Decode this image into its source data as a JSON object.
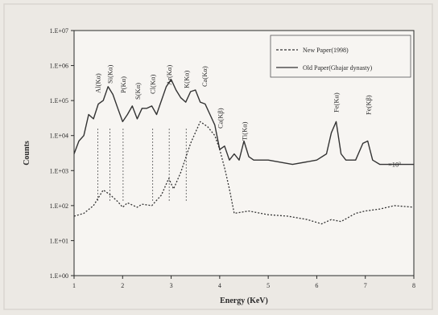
{
  "chart_data": {
    "type": "line",
    "xlabel": "Energy (KeV)",
    "ylabel": "Counts",
    "xlim": [
      1,
      8
    ],
    "ylog": true,
    "ylim": [
      1,
      10000000
    ],
    "x_ticks": [
      "1",
      "2",
      "3",
      "4",
      "5",
      "6",
      "7",
      "8"
    ],
    "y_ticks": [
      "1.E+00",
      "1.E+01",
      "1.E+02",
      "1.E+03",
      "1.E+04",
      "1.E+05",
      "1.E+06",
      "1.E+07"
    ],
    "legend": {
      "placement": "top-right",
      "entries": [
        "New Paper(1998)",
        "Old Paper(Ghajar dynasty)"
      ]
    },
    "multiplier_annotation": "×10³",
    "peaks": [
      {
        "label": "Al(Kα)",
        "x": 1.49
      },
      {
        "label": "Si(Kα)",
        "x": 1.74
      },
      {
        "label": "P(Kα)",
        "x": 2.01
      },
      {
        "label": "S(Kα)",
        "x": 2.31
      },
      {
        "label": "Cl(Kα)",
        "x": 2.62
      },
      {
        "label": "Ar(Kα)",
        "x": 2.96
      },
      {
        "label": "K(Kα)",
        "x": 3.31
      },
      {
        "label": "Ca(Kα)",
        "x": 3.69
      },
      {
        "label": "Ca(Kβ)",
        "x": 4.01
      },
      {
        "label": "Ti(Kα)",
        "x": 4.51
      },
      {
        "label": "Fe(Kα)",
        "x": 6.4
      },
      {
        "label": "Fe(Kβ)",
        "x": 7.06
      }
    ],
    "series": [
      {
        "name": "New Paper(1998)",
        "style": "dashed",
        "color": "#333333",
        "x": [
          1.0,
          1.2,
          1.4,
          1.6,
          1.75,
          1.9,
          2.0,
          2.1,
          2.3,
          2.4,
          2.6,
          2.8,
          2.95,
          3.05,
          3.2,
          3.4,
          3.6,
          3.75,
          3.9,
          4.0,
          4.1,
          4.2,
          4.3,
          4.6,
          5.0,
          5.4,
          5.8,
          6.1,
          6.3,
          6.5,
          6.8,
          7.0,
          7.3,
          7.6,
          8.0
        ],
        "y": [
          50,
          60,
          100,
          280,
          200,
          130,
          90,
          120,
          90,
          110,
          100,
          200,
          600,
          300,
          900,
          6000,
          25000,
          18000,
          10000,
          4000,
          1200,
          300,
          60,
          70,
          55,
          50,
          40,
          30,
          40,
          35,
          60,
          70,
          80,
          100,
          90
        ]
      },
      {
        "name": "Old Paper(Ghajar dynasty)",
        "style": "solid",
        "color": "#333333",
        "x": [
          1.0,
          1.1,
          1.2,
          1.3,
          1.4,
          1.5,
          1.6,
          1.7,
          1.8,
          1.9,
          2.0,
          2.1,
          2.2,
          2.3,
          2.4,
          2.5,
          2.6,
          2.7,
          2.8,
          2.9,
          3.0,
          3.1,
          3.2,
          3.3,
          3.4,
          3.5,
          3.6,
          3.7,
          3.8,
          3.9,
          4.0,
          4.1,
          4.2,
          4.3,
          4.4,
          4.5,
          4.6,
          4.7,
          5.0,
          5.5,
          6.0,
          6.2,
          6.3,
          6.4,
          6.5,
          6.6,
          6.8,
          6.95,
          7.05,
          7.15,
          7.3,
          7.6,
          8.0
        ],
        "y": [
          3000,
          7000,
          10000,
          40000,
          30000,
          80000,
          100000,
          250000,
          150000,
          60000,
          25000,
          40000,
          70000,
          30000,
          60000,
          60000,
          70000,
          40000,
          100000,
          250000,
          400000,
          200000,
          120000,
          90000,
          180000,
          200000,
          90000,
          80000,
          40000,
          20000,
          4000,
          5000,
          2000,
          3000,
          2000,
          7000,
          2500,
          2000,
          2000,
          1500,
          2000,
          3000,
          12000,
          25000,
          3000,
          2000,
          2000,
          6000,
          7000,
          2000,
          1500,
          1500,
          1500
        ]
      }
    ]
  }
}
